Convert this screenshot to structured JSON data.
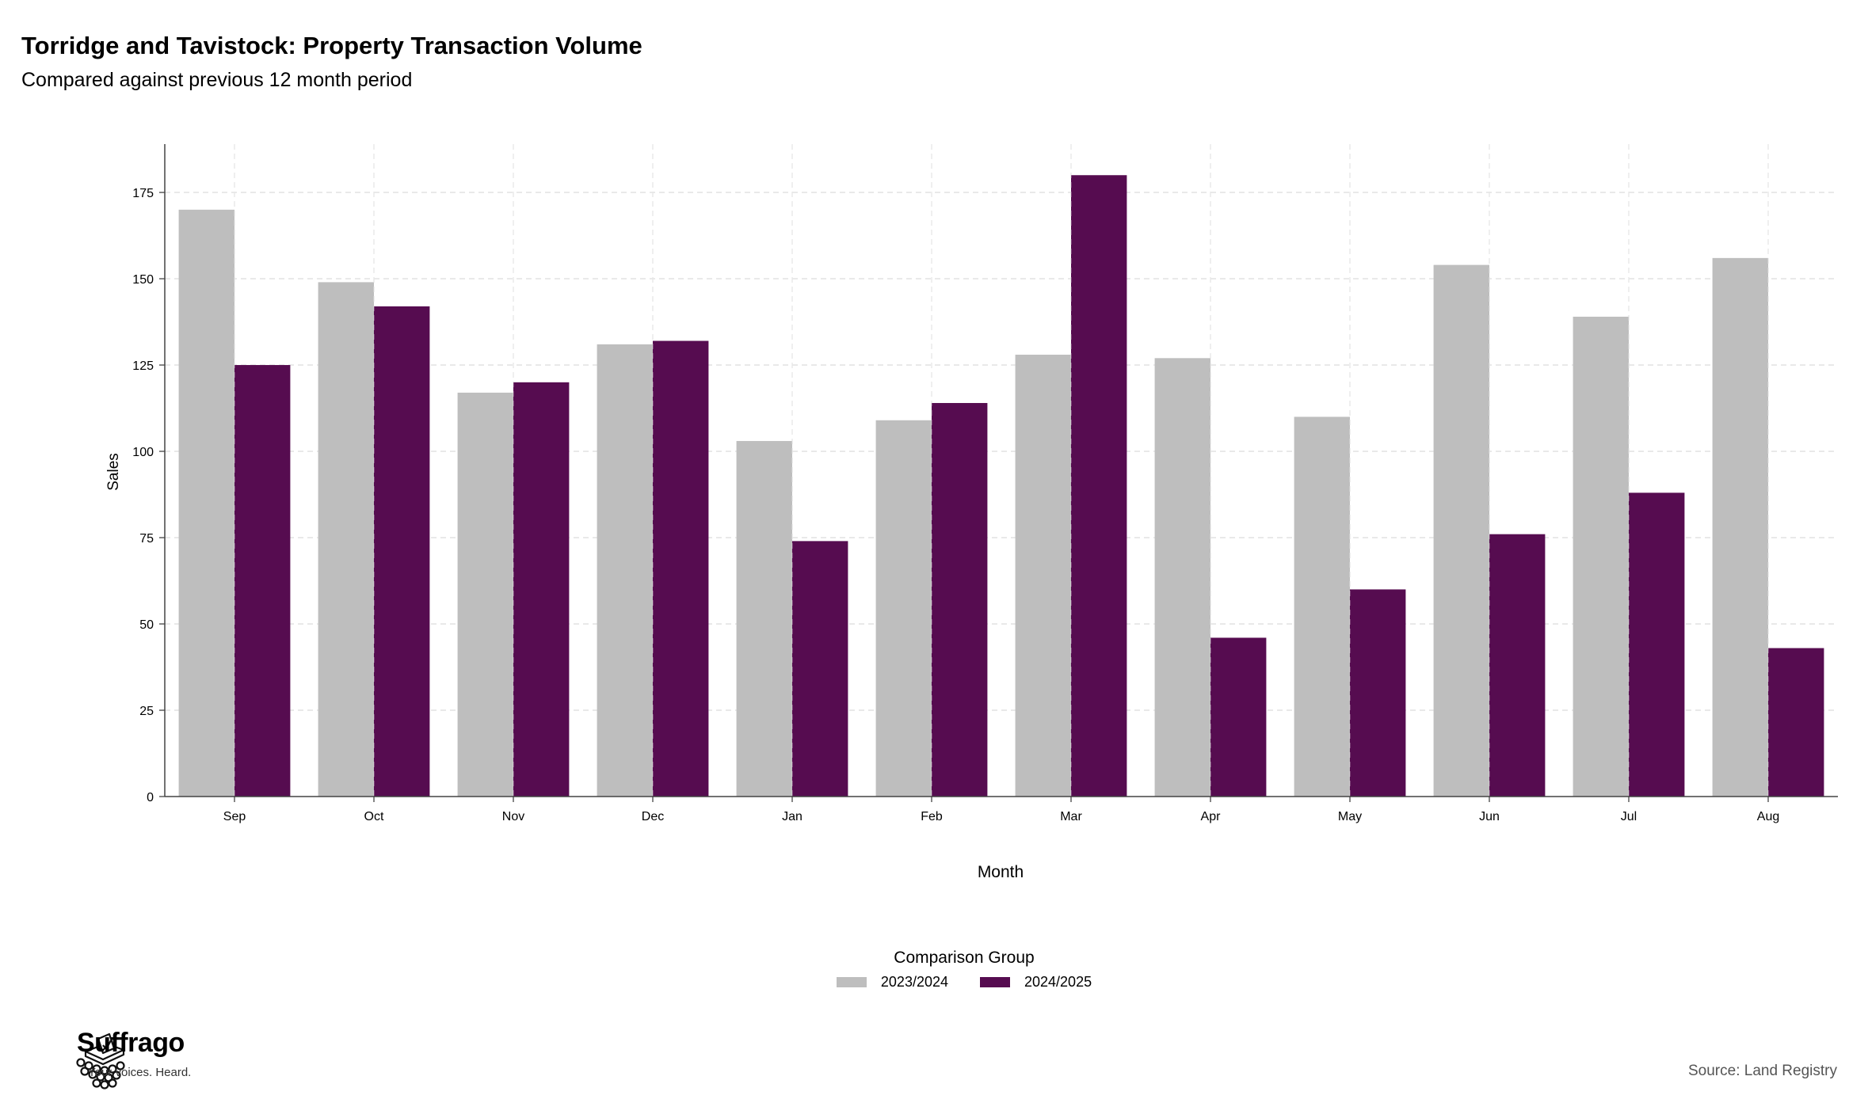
{
  "chart_data": {
    "type": "bar",
    "title": "Torridge and Tavistock: Property Transaction Volume",
    "subtitle": "Compared against previous 12 month period",
    "xlabel": "Month",
    "ylabel": "Sales",
    "categories": [
      "Sep",
      "Oct",
      "Nov",
      "Dec",
      "Jan",
      "Feb",
      "Mar",
      "Apr",
      "May",
      "Jun",
      "Jul",
      "Aug"
    ],
    "series": [
      {
        "name": "2023/2024",
        "color": "#bebebe",
        "values": [
          170,
          149,
          117,
          131,
          103,
          109,
          128,
          127,
          110,
          154,
          139,
          156
        ]
      },
      {
        "name": "2024/2025",
        "color": "#560c50",
        "values": [
          125,
          142,
          120,
          132,
          74,
          114,
          180,
          46,
          60,
          76,
          88,
          43
        ]
      }
    ],
    "ylim": [
      0,
      189
    ],
    "yticks": [
      0,
      25,
      50,
      75,
      100,
      125,
      150,
      175
    ],
    "grid": true,
    "legend": {
      "title": "Comparison Group",
      "position": "bottom"
    }
  },
  "branding": {
    "name": "Suffrago",
    "tagline": "Your voices. Heard."
  },
  "source": "Source: Land Registry"
}
